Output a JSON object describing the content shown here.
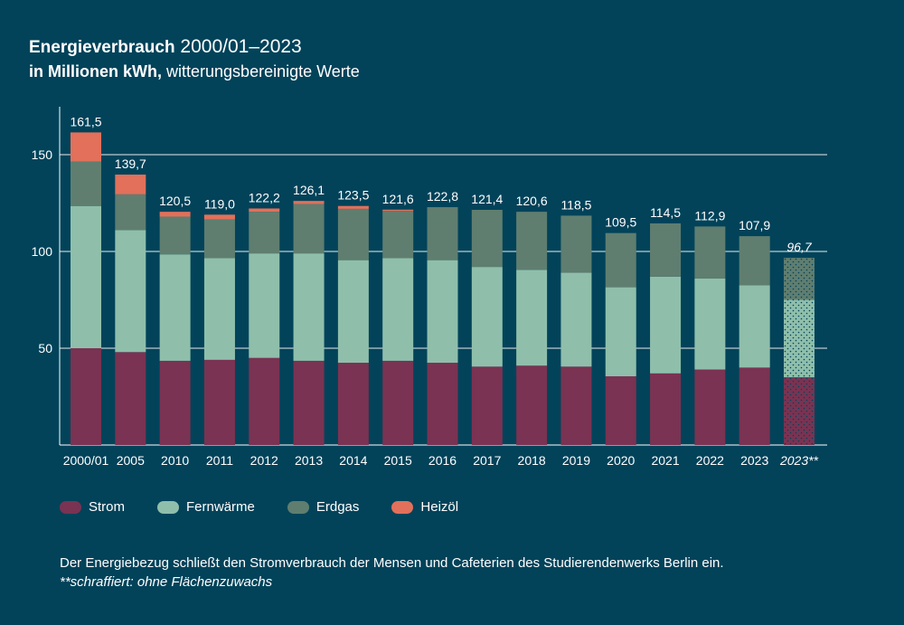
{
  "header": {
    "title_bold": "Energieverbrauch",
    "title_range": "2000/01–2023",
    "subtitle_bold": "in Millionen kWh,",
    "subtitle_rest": "witterungsbereinigte Werte"
  },
  "colors": {
    "background": "#02435a",
    "strom": "#7a3352",
    "fernwaerme": "#8fbfab",
    "erdgas": "#5f7e70",
    "heizoel": "#e2705a",
    "axis": "#ffffff"
  },
  "chart_data": {
    "type": "bar",
    "stacked": true,
    "title": "Energieverbrauch 2000/01–2023",
    "ylabel": "in Millionen kWh",
    "ylim": [
      0,
      170
    ],
    "yticks": [
      50,
      100,
      150
    ],
    "grid": true,
    "categories": [
      "2000/01",
      "2005",
      "2010",
      "2011",
      "2012",
      "2013",
      "2014",
      "2015",
      "2016",
      "2017",
      "2018",
      "2019",
      "2020",
      "2021",
      "2022",
      "2023",
      "2023**"
    ],
    "totals": [
      "161,5",
      "139,7",
      "120,5",
      "119,0",
      "122,2",
      "126,1",
      "123,5",
      "121,6",
      "122,8",
      "121,4",
      "120,6",
      "118,5",
      "109,5",
      "114,5",
      "112,9",
      "107,9",
      "96,7"
    ],
    "hatched_index": 16,
    "series": [
      {
        "name": "Strom",
        "values": [
          50,
          48,
          43.5,
          44,
          45,
          43.5,
          42.5,
          43.5,
          42.5,
          40.5,
          41,
          40.5,
          35.5,
          37,
          39,
          40,
          35
        ]
      },
      {
        "name": "Fernwärme",
        "values": [
          73.5,
          63,
          55,
          52.5,
          54,
          55.5,
          53,
          53,
          53,
          51.5,
          49.5,
          48.5,
          46,
          50,
          47,
          42.5,
          40
        ]
      },
      {
        "name": "Erdgas",
        "values": [
          23,
          18.5,
          19.5,
          20,
          21.5,
          25.5,
          26.5,
          24.5,
          27,
          29.5,
          30,
          29.5,
          28,
          27.5,
          26.9,
          25.4,
          21.7
        ]
      },
      {
        "name": "Heizöl",
        "values": [
          15,
          10.2,
          2.5,
          2.5,
          1.7,
          1.6,
          1.5,
          0.6,
          0.3,
          0,
          0,
          0,
          0,
          0,
          0,
          0,
          0
        ]
      }
    ]
  },
  "legend": [
    {
      "label": "Strom",
      "color": "#7a3352"
    },
    {
      "label": "Fernwärme",
      "color": "#8fbfab"
    },
    {
      "label": "Erdgas",
      "color": "#5f7e70"
    },
    {
      "label": "Heizöl",
      "color": "#e2705a"
    }
  ],
  "footnote": {
    "line1": "Der Energiebezug schließt den Stromverbrauch der Mensen und Cafeterien des Studierendenwerks Berlin ein.",
    "line2": "**schraffiert: ohne Flächenzuwachs"
  }
}
